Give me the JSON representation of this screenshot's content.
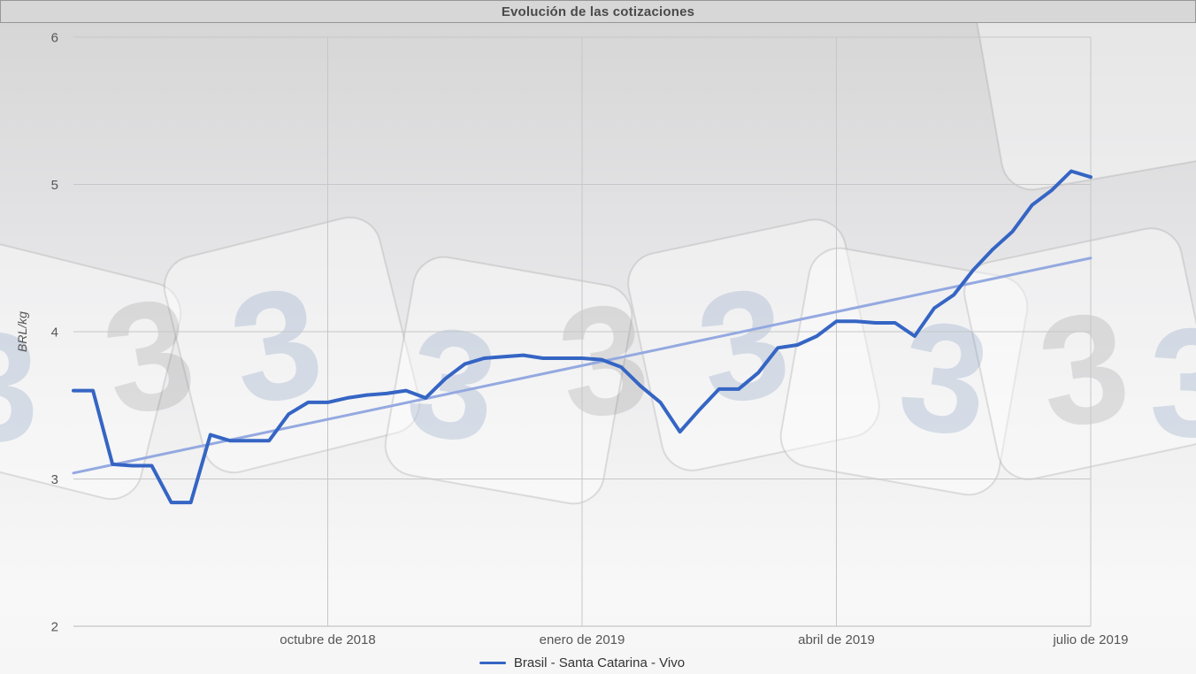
{
  "header": {
    "title": "Evolución de las cotizaciones"
  },
  "legend": {
    "label": "Brasil - Santa Catarina - Vivo"
  },
  "chart_data": {
    "type": "line",
    "title": "Evolución de las cotizaciones",
    "xlabel": "",
    "ylabel": "BRL/kg",
    "ylim": [
      2,
      6
    ],
    "yticks": [
      6,
      5,
      4,
      3,
      2
    ],
    "xticks": [
      {
        "label": "octubre de 2018",
        "week": 13
      },
      {
        "label": "enero de 2019",
        "week": 26
      },
      {
        "label": "abril de 2019",
        "week": 39
      },
      {
        "label": "julio de 2019",
        "week": 52
      }
    ],
    "x_unit": "week",
    "grid": true,
    "legend_position": "bottom",
    "watermark_glyph": "3",
    "series": [
      {
        "name": "Brasil - Santa Catarina - Vivo",
        "color": "#3565c4",
        "values": [
          3.6,
          3.6,
          3.1,
          3.09,
          3.09,
          2.84,
          2.84,
          3.3,
          3.26,
          3.26,
          3.26,
          3.44,
          3.52,
          3.52,
          3.55,
          3.57,
          3.58,
          3.6,
          3.55,
          3.68,
          3.78,
          3.82,
          3.83,
          3.84,
          3.82,
          3.82,
          3.82,
          3.81,
          3.76,
          3.63,
          3.52,
          3.32,
          3.47,
          3.61,
          3.61,
          3.72,
          3.89,
          3.91,
          3.97,
          4.07,
          4.07,
          4.06,
          4.06,
          3.97,
          4.16,
          4.25,
          4.42,
          4.56,
          4.68,
          4.86,
          4.96,
          5.09,
          5.05
        ]
      },
      {
        "name": "tendencia",
        "type": "trend",
        "color": "#94a9e0",
        "start": 3.04,
        "end": 4.5
      }
    ]
  }
}
